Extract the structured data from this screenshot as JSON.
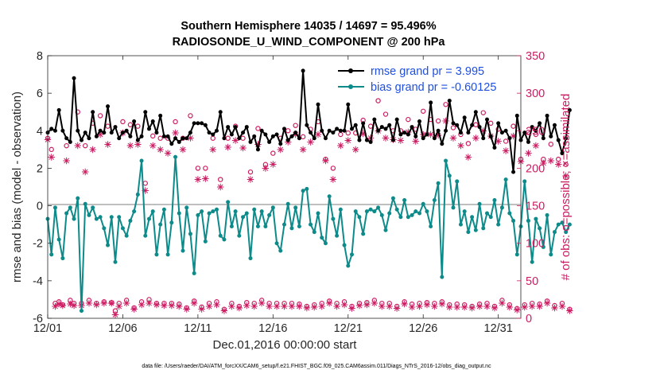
{
  "chart_data": {
    "type": "line",
    "title": "Southern Hemisphere 14035 / 14697 = 95.496%",
    "subtitle": "RADIOSONDE_U_WIND_COMPONENT @ 200 hPa",
    "xlabel": "Dec.01,2016 00:00:00 start",
    "ylabel": "rmse and bias (model - observation)",
    "ylabel_right": "# of obs: o=possible; ×=assimilated",
    "footer": "data file: /Users/raeder/DAI/ATM_forcXX/CAM6_setup/f.e21.FHIST_BGC.f09_025.CAM6assim.011/Diags_NTrS_2016-12/obs_diag_output.nc",
    "xlim": [
      1,
      32.5
    ],
    "ylim": [
      -6,
      8
    ],
    "ylim_right": [
      0,
      350
    ],
    "x_ticks": [
      1,
      6,
      11,
      16,
      21,
      26,
      31
    ],
    "x_tick_labels": [
      "12/01",
      "12/06",
      "12/11",
      "12/16",
      "12/21",
      "12/26",
      "12/31"
    ],
    "y_ticks": [
      -6,
      -4,
      -2,
      0,
      2,
      4,
      6,
      8
    ],
    "y_tick_labels": [
      "-6",
      "-4",
      "-2",
      "0",
      "2",
      "4",
      "6",
      "8"
    ],
    "y2_ticks": [
      0,
      50,
      100,
      150,
      200,
      250,
      300,
      350
    ],
    "y2_tick_labels": [
      "0",
      "50",
      "100",
      "150",
      "200",
      "250",
      "300",
      "350"
    ],
    "zero_line": 0,
    "colors": {
      "rmse": "#000000",
      "bias": "#0d8a8a",
      "obs": "#cc1d62",
      "legend_text": "#1f4fe0",
      "zero": "#aaaaaa"
    },
    "series": [
      {
        "name": "rmse grand pr = 3.995",
        "color": "#000000",
        "values": [
          3.9,
          4.1,
          4.0,
          5.1,
          4.0,
          3.6,
          3.4,
          6.8,
          4.0,
          3.5,
          3.9,
          3.6,
          5.0,
          3.7,
          4.0,
          3.9,
          5.3,
          3.9,
          4.2,
          3.6,
          3.9,
          4.0,
          3.7,
          4.5,
          3.5,
          3.7,
          5.0,
          4.1,
          4.5,
          3.9,
          4.8,
          3.7,
          3.7,
          3.3,
          3.6,
          3.4,
          3.6,
          3.6,
          3.9,
          4.4,
          4.4,
          4.4,
          4.3,
          3.9,
          3.8,
          4.0,
          5.0,
          3.6,
          4.2,
          3.8,
          4.2,
          3.6,
          3.9,
          4.2,
          3.4,
          3.7,
          3.0,
          4.0,
          3.8,
          3.4,
          3.7,
          3.8,
          3.3,
          4.1,
          3.5,
          3.7,
          3.9,
          3.6,
          7.2,
          4.3,
          3.9,
          3.6,
          5.4,
          4.0,
          3.6,
          4.0,
          3.9,
          4.1,
          4.0,
          4.0,
          5.4,
          4.1,
          4.3,
          3.5,
          4.4,
          3.5,
          3.4,
          4.6,
          4.0,
          4.2,
          4.1,
          4.3,
          3.5,
          4.6,
          3.8,
          3.9,
          3.8,
          4.2,
          3.7,
          4.5,
          3.6,
          3.8,
          5.5,
          3.6,
          4.0,
          3.3,
          4.0,
          5.6,
          4.4,
          4.3,
          3.9,
          4.7,
          3.9,
          4.3,
          5.0,
          4.2,
          3.6,
          4.6,
          3.7,
          3.1,
          4.4,
          3.9,
          4.0,
          3.6,
          1.8,
          4.8,
          3.5,
          3.9,
          3.4,
          4.2,
          4.0,
          4.4,
          3.6,
          4.8,
          3.7,
          4.3,
          3.5,
          2.8,
          3.6,
          5.1
        ]
      },
      {
        "name": "bias grand pr = -0.60125",
        "color": "#0d8a8a",
        "values": [
          -0.7,
          -2.6,
          -0.1,
          -1.8,
          -2.8,
          -0.4,
          -0.1,
          -0.7,
          0.4,
          -5.6,
          0.1,
          -0.5,
          -0.1,
          -0.7,
          -0.6,
          -1.2,
          -2.1,
          -0.6,
          -3.0,
          -0.6,
          -1.2,
          -1.6,
          -0.8,
          -0.3,
          0.6,
          2.4,
          -1.6,
          -0.7,
          -0.3,
          -2.6,
          -1.0,
          -0.2,
          -2.6,
          -0.9,
          2.6,
          -0.4,
          -2.4,
          -0.1,
          -1.5,
          -3.6,
          -0.5,
          -0.3,
          -1.9,
          -0.4,
          -0.3,
          -0.2,
          -1.6,
          -1.8,
          0.2,
          -1.1,
          -0.3,
          -1.6,
          -0.6,
          -0.4,
          -2.8,
          -0.2,
          -1.1,
          -0.3,
          -1.1,
          -0.5,
          -0.1,
          -2.0,
          -2.4,
          -1.0,
          0.1,
          -1.2,
          -0.1,
          -1.1,
          0.8,
          0.9,
          -1.0,
          -1.4,
          -0.4,
          -1.7,
          -2.0,
          0.5,
          -0.7,
          -1.6,
          -0.2,
          -2.1,
          -3.2,
          -2.6,
          -0.3,
          -0.6,
          -1.5,
          -0.3,
          -0.2,
          -0.3,
          -0.1,
          -0.5,
          -1.3,
          -0.4,
          0.4,
          -0.2,
          -0.6,
          0.3,
          -0.6,
          -0.5,
          -0.3,
          -0.4,
          0.1,
          -0.3,
          -1.1,
          0.3,
          1.2,
          -3.8,
          2.4,
          1.6,
          -0.1,
          1.3,
          -1.0,
          -0.3,
          -1.4,
          -0.6,
          -1.3,
          0.1,
          -1.2,
          -0.4,
          -0.6,
          0.3,
          -1.0,
          -0.1,
          1.4,
          -0.4,
          -0.8,
          -2.6,
          -1.1,
          1.3,
          -0.8,
          -3.0,
          -0.7,
          -1.2,
          -2.2,
          -0.5,
          -2.6,
          -1.4,
          -1.0,
          -0.9,
          -1.4,
          -1.0
        ]
      },
      {
        "name": "possible obs",
        "color": "#cc1d62",
        "marker": "o",
        "values": [
          240,
          225,
          20,
          22,
          18,
          230,
          24,
          20,
          275,
          20,
          230,
          24,
          260,
          20,
          270,
          22,
          256,
          21,
          10,
          20,
          262,
          24,
          258,
          14,
          256,
          22,
          180,
          25,
          243,
          20,
          240,
          20,
          240,
          20,
          262,
          19,
          240,
          14,
          270,
          23,
          200,
          15,
          200,
          20,
          240,
          22,
          185,
          12,
          240,
          20,
          256,
          16,
          240,
          21,
          195,
          20,
          253,
          24,
          205,
          20,
          220,
          20,
          240,
          20,
          250,
          20,
          257,
          19,
          242,
          16,
          252,
          18,
          262,
          20,
          212,
          23,
          200,
          20,
          245,
          22,
          247,
          16,
          247,
          20,
          264,
          21,
          256,
          24,
          290,
          20,
          272,
          20,
          250,
          16,
          250,
          22,
          265,
          19,
          252,
          20,
          276,
          21,
          265,
          20,
          263,
          22,
          285,
          18,
          254,
          19,
          245,
          18,
          233,
          16,
          258,
          19,
          274,
          20,
          260,
          16,
          252,
          24,
          236,
          18,
          256,
          13,
          212,
          18,
          248,
          20,
          245,
          19,
          212,
          23,
          232,
          17,
          212,
          20,
          205,
          12
        ]
      },
      {
        "name": "assimilated obs",
        "color": "#cc1d62",
        "marker": "x",
        "values": [
          238,
          215,
          16,
          19,
          17,
          210,
          19,
          17,
          230,
          17,
          195,
          20,
          225,
          18,
          245,
          20,
          232,
          20,
          5,
          16,
          247,
          20,
          230,
          12,
          232,
          18,
          170,
          20,
          230,
          18,
          225,
          17,
          220,
          17,
          247,
          16,
          225,
          12,
          240,
          20,
          185,
          12,
          186,
          16,
          225,
          18,
          175,
          10,
          228,
          16,
          237,
          14,
          227,
          17,
          185,
          16,
          232,
          20,
          200,
          16,
          205,
          16,
          225,
          16,
          235,
          16,
          245,
          16,
          225,
          14,
          235,
          15,
          245,
          16,
          210,
          20,
          185,
          16,
          230,
          18,
          237,
          13,
          225,
          17,
          246,
          18,
          240,
          20,
          250,
          16,
          240,
          16,
          238,
          13,
          237,
          19,
          248,
          15,
          236,
          16,
          245,
          18,
          245,
          16,
          244,
          19,
          263,
          15,
          240,
          15,
          230,
          15,
          215,
          14,
          240,
          16,
          250,
          16,
          243,
          14,
          236,
          20,
          223,
          15,
          243,
          11,
          209,
          15,
          220,
          16,
          230,
          16,
          207,
          20,
          210,
          14,
          205,
          16,
          190,
          10
        ]
      }
    ]
  }
}
